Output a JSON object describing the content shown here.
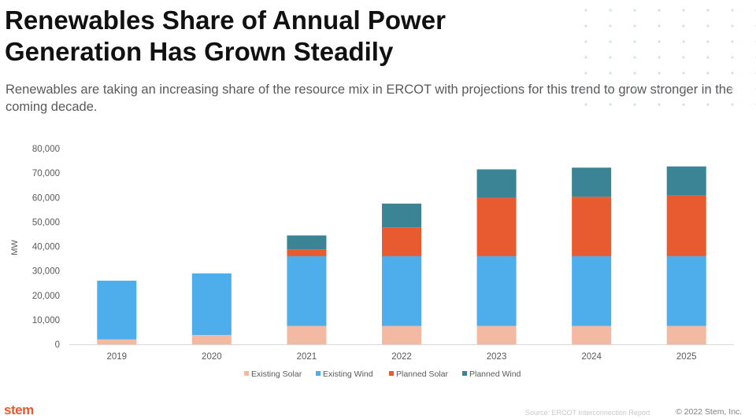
{
  "header": {
    "title": "Renewables Share of Annual Power Generation Has Grown Steadily",
    "subtitle": "Renewables are taking an increasing share of the resource mix in ERCOT with projections for this trend to grow stronger in the coming decade."
  },
  "footer": {
    "logo": "stem",
    "source": "Source: ERCOT Interconnection Report",
    "copyright": "© 2022 Stem, Inc."
  },
  "colors": {
    "existing_solar": "#f4b9a3",
    "existing_wind": "#4daeeb",
    "planned_solar": "#e85a2f",
    "planned_wind": "#3a8496",
    "dots": "#cfe3ef",
    "axis": "#d9d9d9",
    "tick_text": "#595959",
    "logo": "#e8582f"
  },
  "chart_data": {
    "type": "bar",
    "stacked": true,
    "categories": [
      "2019",
      "2020",
      "2021",
      "2022",
      "2023",
      "2024",
      "2025"
    ],
    "series": [
      {
        "name": "Existing Solar",
        "values": [
          2000,
          3800,
          7500,
          7500,
          7500,
          7500,
          7500
        ]
      },
      {
        "name": "Existing Wind",
        "values": [
          24000,
          25200,
          28500,
          28500,
          28500,
          28500,
          28500
        ]
      },
      {
        "name": "Planned Solar",
        "values": [
          0,
          0,
          2800,
          11800,
          23800,
          24300,
          24800
        ]
      },
      {
        "name": "Planned Wind",
        "values": [
          0,
          0,
          5700,
          9700,
          11700,
          11900,
          11900
        ]
      }
    ],
    "ylabel": "MW",
    "xlabel": "",
    "ylim": [
      0,
      80000
    ],
    "yticks": [
      "0",
      "10,000",
      "20,000",
      "30,000",
      "40,000",
      "50,000",
      "60,000",
      "70,000",
      "80,000"
    ],
    "grid": false,
    "legend_position": "bottom"
  }
}
